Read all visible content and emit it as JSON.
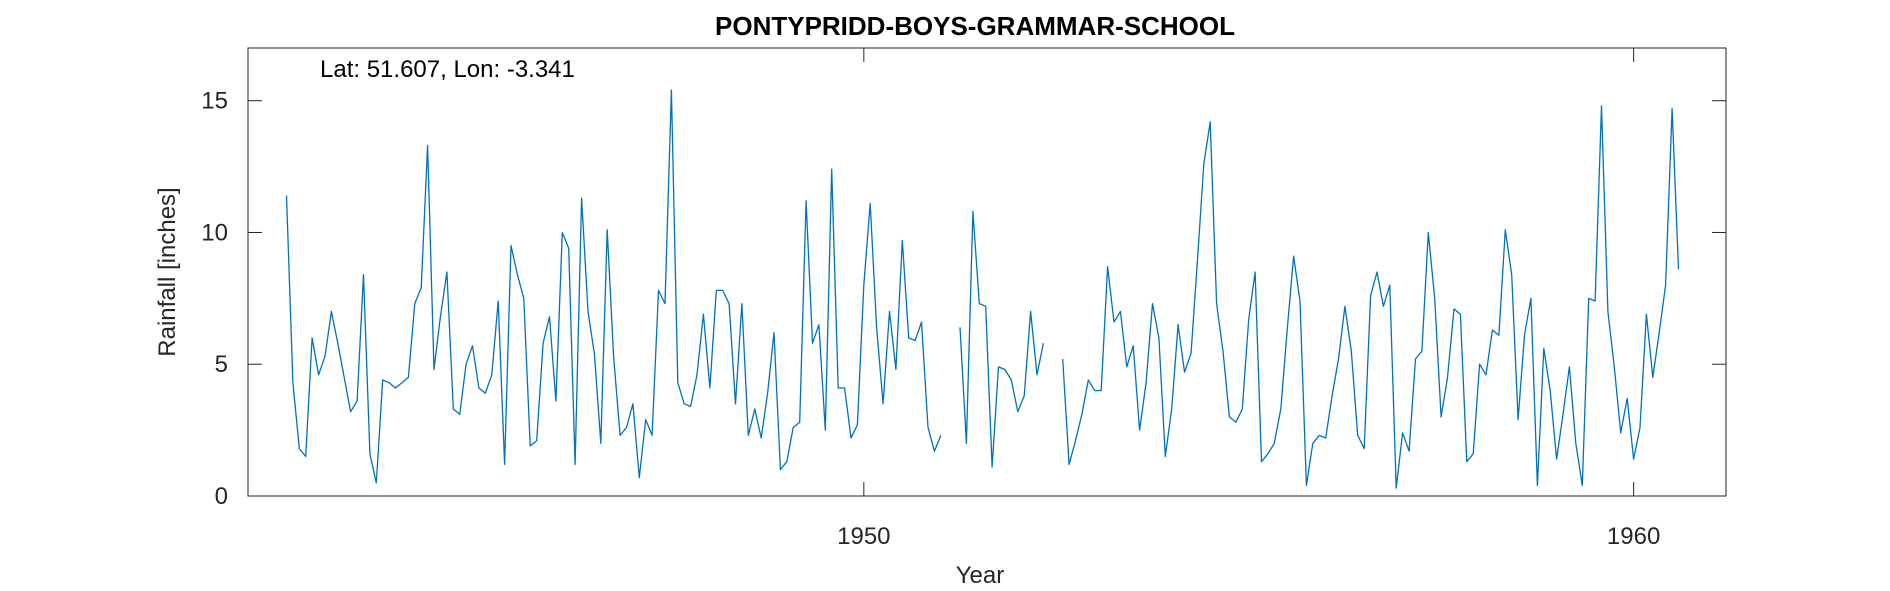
{
  "chart_data": {
    "type": "line",
    "title": "PONTYPRIDD-BOYS-GRAMMAR-SCHOOL",
    "annotation": "Lat: 51.607, Lon: -3.341",
    "xlabel": "Year",
    "ylabel": "Rainfall [inches]",
    "xlim": [
      1942.0,
      1961.2
    ],
    "ylim": [
      0,
      17
    ],
    "xticks": [
      1950,
      1960
    ],
    "yticks": [
      0,
      5,
      10,
      15
    ],
    "grid": false,
    "line_color": "#0072BD",
    "series": [
      {
        "x0": 1942.5,
        "step_years": 0.08333,
        "values": [
          11.4,
          4.3,
          1.8,
          1.5,
          6.0,
          4.6,
          5.3,
          7.0,
          5.8,
          4.5,
          3.2,
          3.6,
          8.4,
          1.6,
          0.5,
          4.4,
          4.3,
          4.1,
          4.3,
          4.5,
          7.3,
          7.9,
          13.3,
          4.8,
          6.8,
          8.5,
          3.3,
          3.1,
          5.0,
          5.7,
          4.1,
          3.9,
          4.6,
          7.4,
          1.2,
          9.5,
          8.4,
          7.5,
          1.9,
          2.1,
          5.8,
          6.8,
          3.6,
          10.0,
          9.4,
          1.2,
          11.3,
          7.0,
          5.4,
          2.0,
          10.1,
          5.3,
          2.3,
          2.6,
          3.5,
          0.7,
          2.9,
          2.3,
          7.8,
          7.3,
          15.4,
          4.3,
          3.5,
          3.4,
          4.6,
          6.9,
          4.1,
          7.8,
          7.8,
          7.3,
          3.5,
          7.3,
          2.3,
          3.3,
          2.2,
          3.9,
          6.2,
          1.0,
          1.3,
          2.6,
          2.8,
          11.2,
          5.8,
          6.5,
          2.5,
          12.4,
          4.1,
          4.1,
          2.2,
          2.7,
          8.0,
          11.1,
          6.4,
          3.5,
          7.0,
          4.8,
          9.7,
          6.0,
          5.9,
          6.6,
          2.6,
          1.7,
          2.3,
          null,
          null,
          6.4,
          2.0,
          10.8,
          7.3,
          7.2,
          1.1,
          4.9,
          4.8,
          4.4,
          3.2,
          3.8,
          7.0,
          4.6,
          5.8,
          null,
          null,
          5.2,
          1.2,
          2.1,
          3.1,
          4.4,
          4.0,
          4.0,
          8.7,
          6.6,
          7.0,
          4.9,
          5.7,
          2.5,
          4.3,
          7.3,
          6.0,
          1.5,
          3.3,
          6.5,
          4.7,
          5.4,
          8.9,
          12.6,
          14.2,
          7.3,
          5.5,
          3.0,
          2.8,
          3.3,
          6.7,
          8.5,
          1.3,
          1.6,
          2.0,
          3.3,
          6.3,
          9.1,
          7.4,
          0.4,
          2.0,
          2.3,
          2.2,
          3.8,
          5.2,
          7.2,
          5.5,
          2.3,
          1.8,
          7.6,
          8.5,
          7.2,
          8.0,
          0.3,
          2.4,
          1.7,
          5.2,
          5.5,
          10.0,
          7.5,
          3.0,
          4.5,
          7.1,
          6.9,
          1.3,
          1.6,
          5.0,
          4.6,
          6.3,
          6.1,
          10.1,
          8.4,
          2.9,
          6.1,
          7.5,
          0.4,
          5.6,
          4.0,
          1.4,
          3.1,
          4.9,
          2.0,
          0.4,
          7.5,
          7.4,
          14.8,
          7.0,
          4.9,
          2.4,
          3.7,
          1.4,
          2.6,
          6.9,
          4.5,
          6.2,
          8.0,
          14.7,
          8.6
        ]
      }
    ]
  }
}
